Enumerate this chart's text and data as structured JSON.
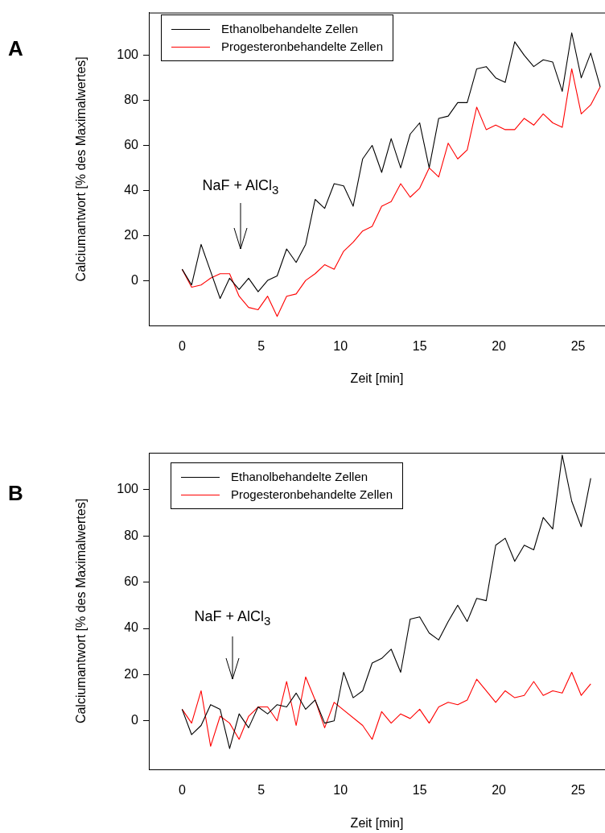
{
  "chart_data": [
    {
      "type": "line",
      "title": "A",
      "xlabel": "Zeit [min]",
      "ylabel": "Calciumantwort [% des Maximalwertes]",
      "xlim": [
        -2.1,
        26.7
      ],
      "ylim": [
        -20,
        119
      ],
      "xticks": [
        0,
        5,
        10,
        15,
        20,
        25
      ],
      "yticks": [
        0,
        20,
        40,
        60,
        80,
        100
      ],
      "grid": false,
      "legend": "top left",
      "annotations": [
        "NaF + AlCl$_{3}$"
      ],
      "x": [
        0,
        0.6,
        1.2,
        1.8,
        2.4,
        3,
        3.6,
        4.2,
        4.8,
        5.4,
        6,
        6.6,
        7.2,
        7.8,
        8.4,
        9,
        9.6,
        10.2,
        10.8,
        11.4,
        12,
        12.6,
        13.2,
        13.8,
        14.4,
        15,
        15.6,
        16.2,
        16.8,
        17.4,
        18,
        18.6,
        19.2,
        19.8,
        20.4,
        21,
        21.6,
        22.2,
        22.8,
        23.4,
        24,
        24.6,
        25.2,
        25.8,
        26.4
      ],
      "series": [
        {
          "name": "Ethanolbehandelte Zellen",
          "color": "#000000",
          "values": [
            5,
            -2,
            16,
            4,
            -8,
            1,
            -4,
            1,
            -5,
            0,
            2,
            14,
            8,
            16,
            36,
            32,
            43,
            42,
            33,
            54,
            60,
            48,
            63,
            50,
            65,
            70,
            50,
            72,
            73,
            79,
            79,
            94,
            95,
            90,
            88,
            106,
            100,
            95,
            98,
            97,
            84,
            110,
            90,
            101,
            86
          ]
        },
        {
          "name": "Progesteronbehandelte Zellen",
          "color": "#ff0000",
          "values": [
            5,
            -3,
            -2,
            1,
            3,
            3,
            -7,
            -12,
            -13,
            -7,
            -16,
            -7,
            -6,
            0,
            3,
            7,
            5,
            13,
            17,
            22,
            24,
            33,
            35,
            43,
            37,
            41,
            50,
            46,
            61,
            54,
            58,
            77,
            67,
            69,
            67,
            67,
            72,
            69,
            74,
            70,
            68,
            94,
            74,
            78,
            86
          ]
        }
      ]
    },
    {
      "type": "line",
      "title": "B",
      "xlabel": "Zeit [min]",
      "ylabel": "Calciumantwort [% des Maximalwertes]",
      "xlim": [
        -2.1,
        26.7
      ],
      "ylim": [
        -21,
        116
      ],
      "xticks": [
        0,
        5,
        10,
        15,
        20,
        25
      ],
      "yticks": [
        0,
        20,
        40,
        60,
        80,
        100
      ],
      "grid": false,
      "legend": "top left",
      "annotations": [
        "NaF + AlCl$_{3}$"
      ],
      "series": [
        {
          "name": "Ethanolbehandelte Zellen",
          "color": "#000000",
          "x": [
            0,
            0.6,
            1.2,
            1.8,
            2.4,
            3,
            3.6,
            4.2,
            4.8,
            5.4,
            6,
            6.6,
            7.2,
            7.8,
            8.4,
            9,
            9.6,
            10.2,
            10.8,
            11.4,
            12,
            12.6,
            13.2,
            13.8,
            14.4,
            15,
            15.6,
            16.2,
            16.8,
            17.4,
            18,
            18.6,
            19.2,
            19.8,
            20.4,
            21,
            21.6,
            22.2,
            22.8,
            23.4,
            24,
            24.6,
            25.2,
            25.8
          ],
          "values": [
            5,
            -6,
            -2,
            7,
            5,
            -12,
            3,
            -3,
            6,
            3,
            7,
            6,
            12,
            5,
            9,
            -1,
            0,
            21,
            10,
            13,
            25,
            27,
            31,
            21,
            44,
            45,
            38,
            35,
            43,
            50,
            43,
            53,
            52,
            76,
            79,
            69,
            76,
            74,
            88,
            83,
            115,
            95,
            84,
            105
          ]
        },
        {
          "name": "Progesteronbehandelte Zellen",
          "color": "#ff0000",
          "x": [
            0,
            0.6,
            1.2,
            1.8,
            2.4,
            3,
            3.6,
            4.2,
            4.8,
            5.4,
            6,
            6.6,
            7.2,
            7.8,
            8.4,
            9,
            9.6,
            11.4,
            12,
            12.6,
            13.2,
            13.8,
            14.4,
            15,
            15.6,
            16.2,
            16.8,
            17.4,
            18,
            18.6,
            19.2,
            19.8,
            20.4,
            21,
            21.6,
            22.2,
            22.8,
            23.4,
            24,
            24.6,
            25.2,
            25.8
          ],
          "values": [
            5,
            -1,
            13,
            -11,
            2,
            -1,
            -8,
            2,
            6,
            6,
            0,
            17,
            -2,
            19,
            9,
            -3,
            8,
            -2,
            -8,
            4,
            -1,
            3,
            1,
            5,
            -1,
            6,
            8,
            7,
            9,
            18,
            13,
            8,
            13,
            10,
            11,
            17,
            11,
            13,
            12,
            21,
            11,
            16
          ]
        }
      ]
    }
  ]
}
